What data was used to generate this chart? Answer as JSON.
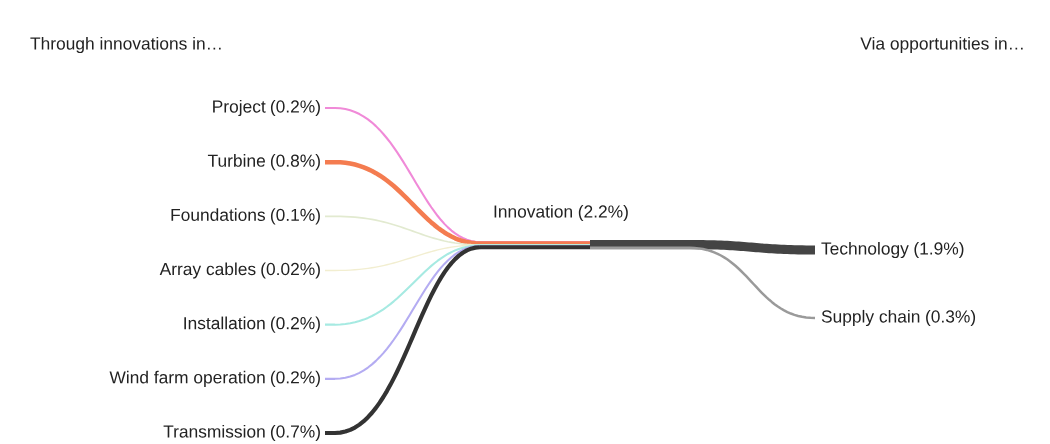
{
  "chart_data": [
    {
      "type": "other",
      "annotations": [
        "Through innovations in…"
      ],
      "categories": [
        "Project",
        "Turbine",
        "Foundations",
        "Array cables",
        "Installation",
        "Wind farm operation",
        "Transmission"
      ],
      "values": [
        0.2,
        0.8,
        0.1,
        0.02,
        0.2,
        0.2,
        0.7
      ],
      "value_labels": [
        "(0.2%)",
        "(0.8%)",
        "(0.1%)",
        "(0.02%)",
        "(0.2%)",
        "(0.2%)",
        "(0.7%)"
      ],
      "colors": [
        "#f08ad8",
        "#f47c50",
        "#e2ead0",
        "#f2eed0",
        "#a6eae2",
        "#b4acf2",
        "#333333"
      ]
    },
    {
      "type": "other",
      "categories": [
        "Innovation"
      ],
      "values": [
        2.2
      ],
      "value_labels": [
        "(2.2%)"
      ]
    },
    {
      "type": "other",
      "annotations": [
        "Via opportunities in…"
      ],
      "categories": [
        "Technology",
        "Supply chain"
      ],
      "values": [
        1.9,
        0.3
      ],
      "value_labels": [
        "(1.9%)",
        "(0.3%)"
      ],
      "colors": [
        "#444444",
        "#9a9a9a"
      ]
    }
  ]
}
